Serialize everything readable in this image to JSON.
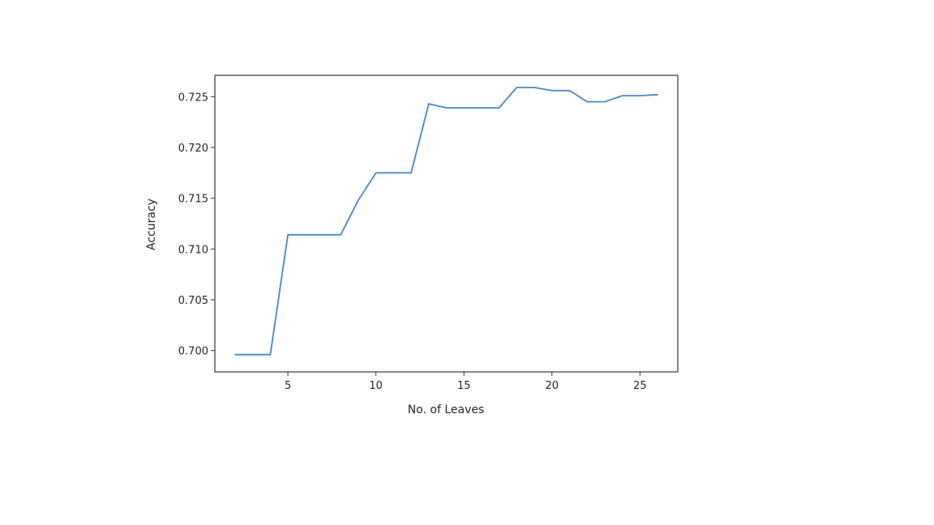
{
  "chart_data": {
    "type": "line",
    "title": "",
    "xlabel": "No. of Leaves",
    "ylabel": "Accuracy",
    "xlim": [
      0.85,
      27.15
    ],
    "ylim": [
      0.6979,
      0.7271
    ],
    "xticks": [
      5,
      10,
      15,
      20,
      25
    ],
    "yticks": [
      0.7,
      0.705,
      0.71,
      0.715,
      0.72,
      0.725
    ],
    "xtick_labels": [
      "5",
      "10",
      "15",
      "20",
      "25"
    ],
    "ytick_labels": [
      "0.700",
      "0.705",
      "0.710",
      "0.715",
      "0.720",
      "0.725"
    ],
    "grid": false,
    "series": [
      {
        "color": "#4a86c0",
        "x": [
          2,
          3,
          4,
          5,
          6,
          7,
          8,
          9,
          10,
          11,
          12,
          13,
          14,
          15,
          16,
          17,
          18,
          19,
          20,
          21,
          22,
          23,
          24,
          25,
          26
        ],
        "y": [
          0.6996,
          0.6996,
          0.6996,
          0.7114,
          0.7114,
          0.7114,
          0.7114,
          0.7148,
          0.7175,
          0.7175,
          0.7175,
          0.7243,
          0.7239,
          0.7239,
          0.7239,
          0.7239,
          0.7259,
          0.7259,
          0.7256,
          0.7256,
          0.7245,
          0.7245,
          0.7251,
          0.7251,
          0.7252
        ]
      }
    ]
  }
}
